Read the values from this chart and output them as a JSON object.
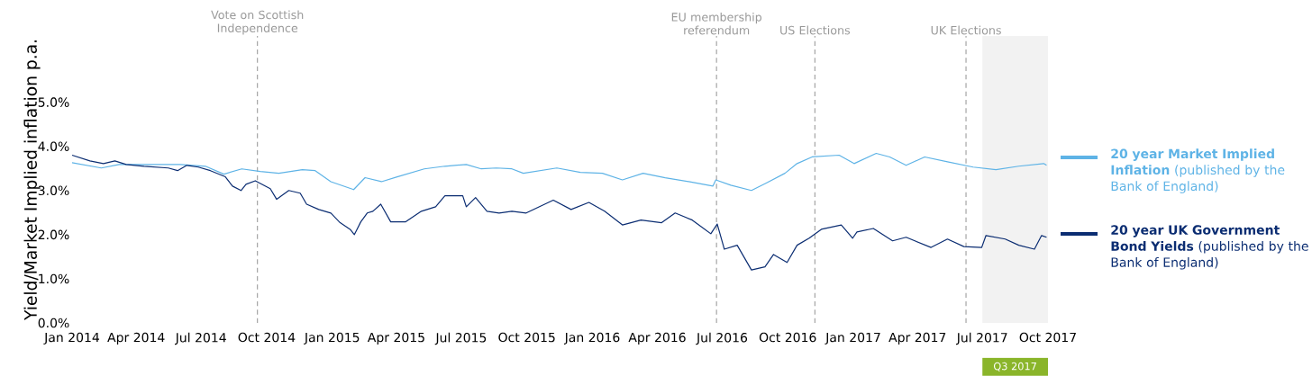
{
  "chart_data": {
    "type": "line",
    "ylabel": "Yield/Market Implied inflation p.a.",
    "xlim": [
      "2014-01-01",
      "2017-10-01"
    ],
    "ylim": [
      0,
      6.5
    ],
    "xticks": [
      {
        "value": "2014-01-01",
        "label": "Jan 2014"
      },
      {
        "value": "2014-04-01",
        "label": "Apr 2014"
      },
      {
        "value": "2014-07-01",
        "label": "Jul 2014"
      },
      {
        "value": "2014-10-01",
        "label": "Oct 2014"
      },
      {
        "value": "2015-01-01",
        "label": "Jan 2015"
      },
      {
        "value": "2015-04-01",
        "label": "Apr 2015"
      },
      {
        "value": "2015-07-01",
        "label": "Jul 2015"
      },
      {
        "value": "2015-10-01",
        "label": "Oct 2015"
      },
      {
        "value": "2016-01-01",
        "label": "Jan 2016"
      },
      {
        "value": "2016-04-01",
        "label": "Apr 2016"
      },
      {
        "value": "2016-07-01",
        "label": "Jul 2016"
      },
      {
        "value": "2016-10-01",
        "label": "Oct 2016"
      },
      {
        "value": "2017-01-01",
        "label": "Jan 2017"
      },
      {
        "value": "2017-04-01",
        "label": "Apr 2017"
      },
      {
        "value": "2017-07-01",
        "label": "Jul 2017"
      },
      {
        "value": "2017-10-01",
        "label": "Oct 2017"
      }
    ],
    "yticks": [
      {
        "value": 0,
        "label": "0.0%"
      },
      {
        "value": 1,
        "label": "1.0%"
      },
      {
        "value": 2,
        "label": "2.0%"
      },
      {
        "value": 3,
        "label": "3.0%"
      },
      {
        "value": 4,
        "label": "4.0%"
      },
      {
        "value": 5,
        "label": "5.0%"
      }
    ],
    "legend": "right",
    "series": [
      {
        "name": "**20 year Market Implied Inflation** (published by the Bank of England)",
        "color": "#5eb3e6",
        "x": [
          "2014-01-01",
          "2014-02-11",
          "2014-03-08",
          "2014-04-21",
          "2014-06-02",
          "2014-07-07",
          "2014-08-02",
          "2014-08-27",
          "2014-09-22",
          "2014-10-18",
          "2014-11-20",
          "2014-12-08",
          "2014-12-30",
          "2015-01-31",
          "2015-02-16",
          "2015-03-11",
          "2015-04-02",
          "2015-05-10",
          "2015-06-08",
          "2015-07-08",
          "2015-07-29",
          "2015-08-19",
          "2015-09-10",
          "2015-09-26",
          "2015-11-12",
          "2015-12-15",
          "2016-01-15",
          "2016-02-12",
          "2016-03-12",
          "2016-04-12",
          "2016-05-15",
          "2016-06-18",
          "2016-06-22",
          "2016-07-13",
          "2016-08-11",
          "2016-09-02",
          "2016-09-27",
          "2016-10-14",
          "2016-11-04",
          "2016-12-12",
          "2017-01-02",
          "2017-02-02",
          "2017-02-21",
          "2017-03-16",
          "2017-04-11",
          "2017-05-13",
          "2017-06-18",
          "2017-07-20",
          "2017-08-21",
          "2017-09-25",
          "2017-09-29"
        ],
        "values": [
          3.63,
          3.51,
          3.59,
          3.59,
          3.59,
          3.55,
          3.37,
          3.49,
          3.43,
          3.39,
          3.47,
          3.45,
          3.2,
          3.02,
          3.29,
          3.2,
          3.31,
          3.49,
          3.55,
          3.59,
          3.49,
          3.51,
          3.49,
          3.39,
          3.51,
          3.41,
          3.39,
          3.24,
          3.39,
          3.29,
          3.2,
          3.1,
          3.24,
          3.12,
          3.0,
          3.18,
          3.39,
          3.61,
          3.76,
          3.8,
          3.61,
          3.84,
          3.76,
          3.57,
          3.76,
          3.65,
          3.53,
          3.47,
          3.55,
          3.61,
          3.57
        ]
      },
      {
        "name": "**20 year UK Government Bond Yields** (published by the Bank of England)",
        "color": "#0b2d72",
        "x": [
          "2014-01-01",
          "2014-01-26",
          "2014-02-14",
          "2014-03-02",
          "2014-03-18",
          "2014-04-12",
          "2014-05-16",
          "2014-05-29",
          "2014-06-11",
          "2014-06-27",
          "2014-07-14",
          "2014-08-04",
          "2014-08-14",
          "2014-08-26",
          "2014-09-02",
          "2014-09-15",
          "2014-10-06",
          "2014-10-15",
          "2014-11-01",
          "2014-11-17",
          "2014-11-26",
          "2014-12-13",
          "2014-12-30",
          "2015-01-12",
          "2015-01-26",
          "2015-02-01",
          "2015-02-10",
          "2015-02-19",
          "2015-02-27",
          "2015-03-10",
          "2015-03-24",
          "2015-04-14",
          "2015-05-06",
          "2015-05-26",
          "2015-06-08",
          "2015-07-03",
          "2015-07-08",
          "2015-07-21",
          "2015-08-06",
          "2015-08-23",
          "2015-09-10",
          "2015-09-30",
          "2015-10-18",
          "2015-11-07",
          "2015-12-02",
          "2015-12-27",
          "2016-01-18",
          "2016-02-12",
          "2016-03-09",
          "2016-04-07",
          "2016-04-26",
          "2016-05-20",
          "2016-06-15",
          "2016-06-24",
          "2016-07-04",
          "2016-07-22",
          "2016-08-11",
          "2016-08-30",
          "2016-09-11",
          "2016-09-30",
          "2016-10-14",
          "2016-10-31",
          "2016-11-17",
          "2016-12-15",
          "2016-12-31",
          "2017-01-06",
          "2017-01-29",
          "2017-02-25",
          "2017-03-16",
          "2017-04-20",
          "2017-05-13",
          "2017-06-05",
          "2017-06-30",
          "2017-07-06",
          "2017-08-02",
          "2017-08-21",
          "2017-09-12",
          "2017-09-22",
          "2017-09-29"
        ],
        "values": [
          3.8,
          3.67,
          3.61,
          3.67,
          3.59,
          3.55,
          3.51,
          3.45,
          3.57,
          3.53,
          3.45,
          3.31,
          3.1,
          3.0,
          3.14,
          3.22,
          3.04,
          2.8,
          3.0,
          2.94,
          2.69,
          2.57,
          2.49,
          2.27,
          2.12,
          2.0,
          2.29,
          2.49,
          2.53,
          2.69,
          2.29,
          2.29,
          2.53,
          2.63,
          2.88,
          2.88,
          2.63,
          2.84,
          2.53,
          2.49,
          2.53,
          2.49,
          2.63,
          2.78,
          2.57,
          2.73,
          2.53,
          2.22,
          2.33,
          2.27,
          2.49,
          2.33,
          2.02,
          2.24,
          1.67,
          1.76,
          1.2,
          1.27,
          1.55,
          1.37,
          1.76,
          1.92,
          2.12,
          2.22,
          1.92,
          2.06,
          2.14,
          1.86,
          1.94,
          1.71,
          1.9,
          1.73,
          1.71,
          1.98,
          1.9,
          1.76,
          1.67,
          1.98,
          1.94
        ]
      }
    ],
    "ref_lines": [
      {
        "axis": "x",
        "value": "2014-09-18",
        "label": "Vote on Scottish Independence",
        "color": "#999999",
        "line_style": "dashed"
      },
      {
        "axis": "x",
        "value": "2016-06-23",
        "label": "EU membership referendum",
        "color": "#999999",
        "line_style": "dashed"
      },
      {
        "axis": "x",
        "value": "2016-11-08",
        "label": "US Elections",
        "color": "#999999",
        "line_style": "dashed"
      },
      {
        "axis": "x",
        "value": "2017-06-08",
        "label": "UK Elections",
        "color": "#999999",
        "line_style": "dashed"
      }
    ],
    "bands": [
      {
        "axis": "x",
        "from": "2017-07-01",
        "to": "2017-10-01",
        "label": "Q3 2017",
        "color": "#f2f2f2"
      }
    ]
  }
}
